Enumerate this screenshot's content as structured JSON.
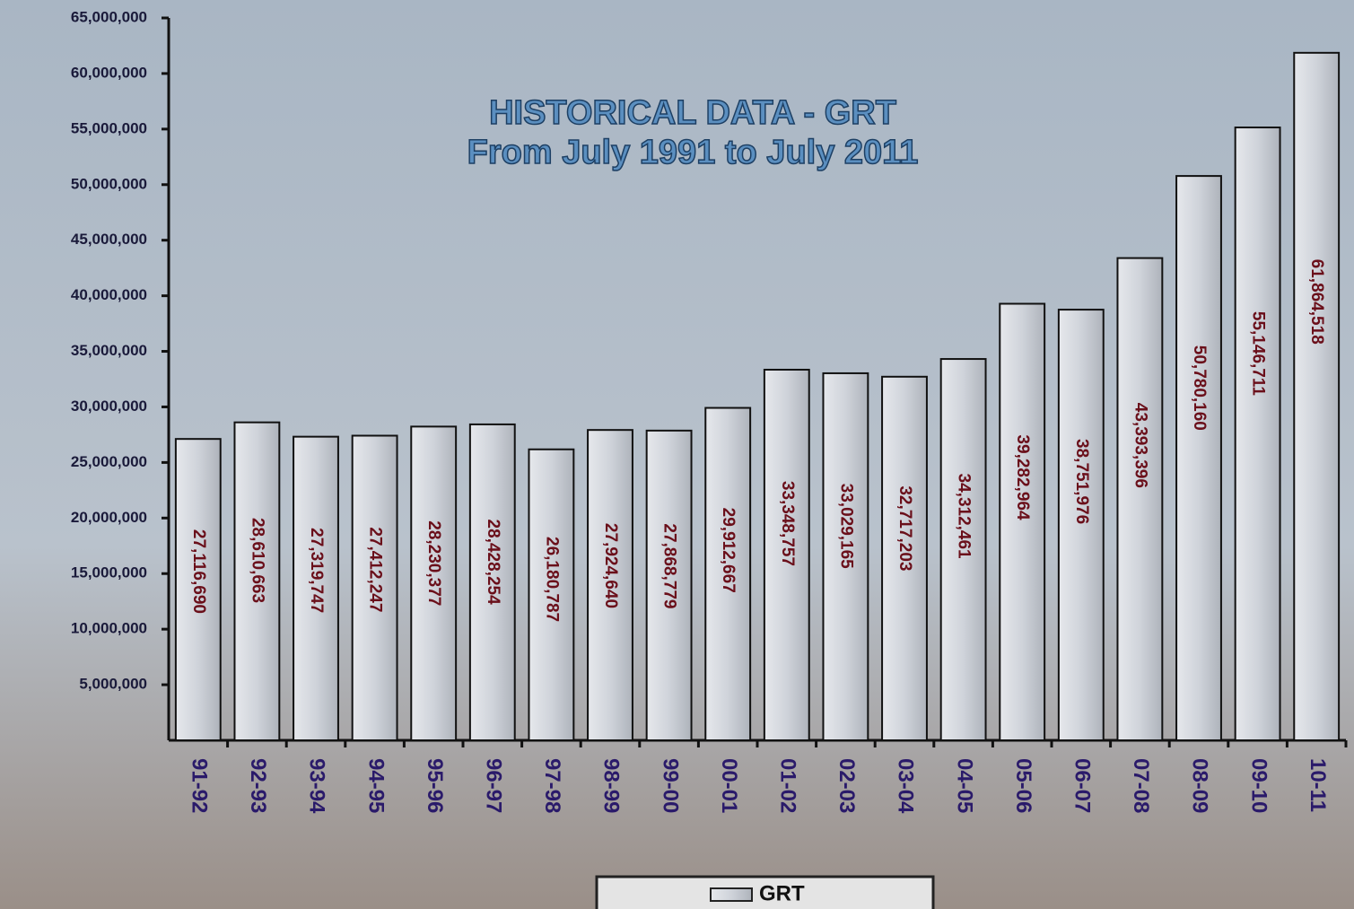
{
  "chart_data": {
    "type": "bar",
    "title": "HISTORICAL   DATA - GRT",
    "subtitle": "From   July   1991   to   July   2011",
    "categories": [
      "91-92",
      "92-93",
      "93-94",
      "94-95",
      "95-96",
      "96-97",
      "97-98",
      "98-99",
      "99-00",
      "00-01",
      "01-02",
      "02-03",
      "03-04",
      "04-05",
      "05-06",
      "06-07",
      "07-08",
      "08-09",
      "09-10",
      "10-11"
    ],
    "series": [
      {
        "name": "GRT",
        "color": "#c9ccd2",
        "values": [
          27116690,
          28610663,
          27319747,
          27412247,
          28230377,
          28428254,
          26180787,
          27924640,
          27868779,
          29912667,
          33348757,
          33029165,
          32717203,
          34312461,
          39282964,
          38751976,
          43393396,
          50780160,
          55146711,
          61864518
        ],
        "value_labels": [
          "27,116,690",
          "28,610,663",
          "27,319,747",
          "27,412,247",
          "28,230,377",
          "28,428,254",
          "26,180,787",
          "27,924,640",
          "27,868,779",
          "29,912,667",
          "33,348,757",
          "33,029,165",
          "32,717,203",
          "34,312,461",
          "39,282,964",
          "38,751,976",
          "43,393,396",
          "50,780,160",
          "55,146,711",
          "61,864,518"
        ]
      }
    ],
    "ylim": [
      0,
      65000000
    ],
    "yticks": [
      {
        "value": 5000000,
        "label": "5,000,000"
      },
      {
        "value": 10000000,
        "label": "10,000,000"
      },
      {
        "value": 15000000,
        "label": "15,000,000"
      },
      {
        "value": 20000000,
        "label": "20,000,000"
      },
      {
        "value": 25000000,
        "label": "25,000,000"
      },
      {
        "value": 30000000,
        "label": "30,000,000"
      },
      {
        "value": 35000000,
        "label": "35,000,000"
      },
      {
        "value": 40000000,
        "label": "40,000,000"
      },
      {
        "value": 45000000,
        "label": "45,000,000"
      },
      {
        "value": 50000000,
        "label": "50,000,000"
      },
      {
        "value": 55000000,
        "label": "55,000,000"
      },
      {
        "value": 60000000,
        "label": "60,000,000"
      },
      {
        "value": 65000000,
        "label": "65,000,000"
      }
    ],
    "legend": "bottom"
  }
}
